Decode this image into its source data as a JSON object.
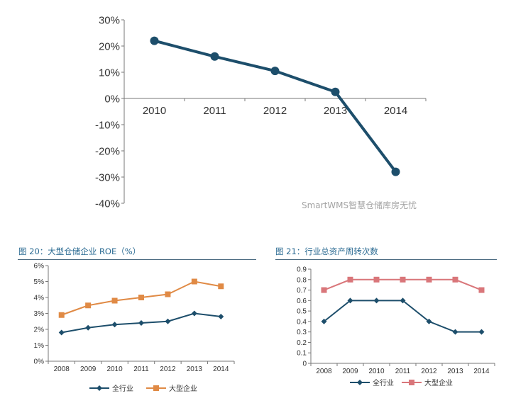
{
  "chart_data": [
    {
      "type": "line",
      "title": "",
      "categories": [
        "2010",
        "2011",
        "2012",
        "2013",
        "2014"
      ],
      "series": [
        {
          "values": [
            22,
            16,
            10.5,
            2.5,
            -28
          ]
        }
      ],
      "ylim": [
        -40,
        30
      ],
      "yticks": [
        "30%",
        "20%",
        "10%",
        "0%",
        "-10%",
        "-20%",
        "-30%",
        "-40%"
      ],
      "y_unit": "%",
      "grid": false,
      "color": "#1d4e6b"
    },
    {
      "type": "line",
      "title": "图 20：大型仓储企业 ROE（%）",
      "categories": [
        "2008",
        "2009",
        "2010",
        "2011",
        "2012",
        "2013",
        "2014"
      ],
      "series": [
        {
          "name": "全行业",
          "values": [
            1.8,
            2.1,
            2.3,
            2.4,
            2.5,
            3.0,
            2.8
          ],
          "color": "#1d4e6b",
          "marker": "diamond"
        },
        {
          "name": "大型企业",
          "values": [
            2.9,
            3.5,
            3.8,
            4.0,
            4.2,
            5.0,
            4.7
          ],
          "color": "#e08a45",
          "marker": "square"
        }
      ],
      "ylim": [
        0,
        6
      ],
      "yticks": [
        "0%",
        "1%",
        "2%",
        "3%",
        "4%",
        "5%",
        "6%"
      ],
      "grid": false,
      "legend": "bottom"
    },
    {
      "type": "line",
      "title": "图 21：行业总资产周转次数",
      "categories": [
        "2008",
        "2009",
        "2010",
        "2011",
        "2012",
        "2013",
        "2014"
      ],
      "series": [
        {
          "name": "全行业",
          "values": [
            0.4,
            0.6,
            0.6,
            0.6,
            0.4,
            0.3,
            0.3
          ],
          "color": "#1d4e6b",
          "marker": "diamond"
        },
        {
          "name": "大型企业",
          "values": [
            0.7,
            0.8,
            0.8,
            0.8,
            0.8,
            0.8,
            0.7
          ],
          "color": "#d9767a",
          "marker": "square"
        }
      ],
      "ylim": [
        0,
        0.9
      ],
      "yticks": [
        "0",
        "0.1",
        "0.2",
        "0.3",
        "0.4",
        "0.5",
        "0.6",
        "0.7",
        "0.8",
        "0.9"
      ],
      "grid": false,
      "legend": "bottom"
    }
  ],
  "watermark": "SmartWMS智慧仓储库房无忧"
}
